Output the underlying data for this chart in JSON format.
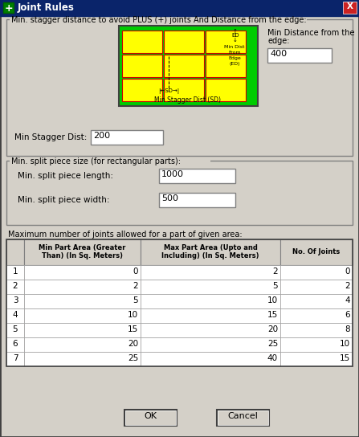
{
  "title": "Joint Rules",
  "bg_color": "#d4d0c8",
  "title_bar_color": "#0a246a",
  "title_text_color": "#ffffff",
  "section1_label": "Min. stagger distance to avoid PLUS (+) joints And Distance from the edge:",
  "section2_label": "Min. split piece size (for rectangular parts):",
  "section3_label": "Maximum number of joints allowed for a part of given area:",
  "min_stagger_label": "Min Stagger Dist:",
  "min_stagger_value": "200",
  "min_dist_line1": "Min Distance from the",
  "min_dist_line2": "edge:",
  "min_dist_value": "400",
  "split_length_label": "Min. split piece length:",
  "split_length_value": "1000",
  "split_width_label": "Min. split piece width:",
  "split_width_value": "500",
  "table_headers": [
    "",
    "Min Part Area (Greater\nThan) (In Sq. Meters)",
    "Max Part Area (Upto and\nIncluding) (In Sq. Meters)",
    "No. Of Joints"
  ],
  "table_rows": [
    [
      "1",
      "0",
      "2",
      "0"
    ],
    [
      "2",
      "2",
      "5",
      "2"
    ],
    [
      "3",
      "5",
      "10",
      "4"
    ],
    [
      "4",
      "10",
      "15",
      "6"
    ],
    [
      "5",
      "15",
      "20",
      "8"
    ],
    [
      "6",
      "20",
      "25",
      "10"
    ],
    [
      "7",
      "25",
      "40",
      "15"
    ]
  ],
  "ok_button": "OK",
  "cancel_button": "Cancel",
  "green_bg": "#00cc00",
  "yellow_cell": "#ffff00",
  "red_line": "#cc0000",
  "white_field": "#ffffff"
}
